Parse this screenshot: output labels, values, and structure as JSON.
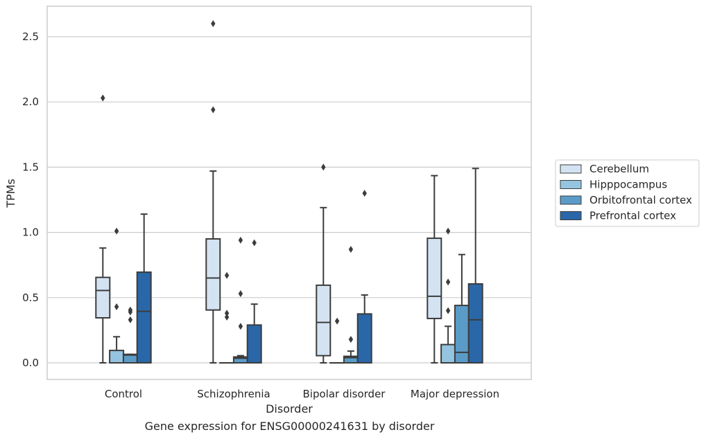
{
  "caption": "Gene expression for ENSG00000241631 by disorder",
  "chart_data": {
    "type": "box",
    "title": "",
    "xlabel": "Disorder",
    "ylabel": "TPMs",
    "ylim": [
      -0.12,
      2.72
    ],
    "yticks": [
      0.0,
      0.5,
      1.0,
      1.5,
      2.0,
      2.5
    ],
    "ytick_labels": [
      "0.0",
      "0.5",
      "1.0",
      "1.5",
      "2.0",
      "2.5"
    ],
    "grid": "horizontal",
    "legend_position": "right",
    "categories": [
      "Control",
      "Schizophrenia",
      "Bipolar disorder",
      "Major depression"
    ],
    "series": [
      {
        "name": "Cerebellum",
        "color": "#d4e3f2",
        "boxes": [
          {
            "whisker_low": 0.0,
            "q1": 0.345,
            "median": 0.555,
            "q3": 0.655,
            "whisker_high": 0.88,
            "outliers": [
              2.03
            ]
          },
          {
            "whisker_low": 0.0,
            "q1": 0.405,
            "median": 0.65,
            "q3": 0.95,
            "whisker_high": 1.47,
            "outliers": [
              1.94,
              2.6
            ]
          },
          {
            "whisker_low": 0.0,
            "q1": 0.055,
            "median": 0.31,
            "q3": 0.595,
            "whisker_high": 1.19,
            "outliers": [
              1.5
            ]
          },
          {
            "whisker_low": 0.0,
            "q1": 0.34,
            "median": 0.51,
            "q3": 0.955,
            "whisker_high": 1.435,
            "outliers": []
          }
        ]
      },
      {
        "name": "Hipppocampus",
        "color": "#94c4df",
        "boxes": [
          {
            "whisker_low": 0.0,
            "q1": 0.0,
            "median": 0.0,
            "q3": 0.095,
            "whisker_high": 0.2,
            "outliers": [
              0.43,
              1.01
            ]
          },
          {
            "whisker_low": 0.0,
            "q1": 0.0,
            "median": 0.0,
            "q3": 0.0,
            "whisker_high": 0.0,
            "outliers": [
              0.35,
              0.38,
              0.67
            ]
          },
          {
            "whisker_low": 0.0,
            "q1": 0.0,
            "median": 0.0,
            "q3": 0.0,
            "whisker_high": 0.0,
            "outliers": [
              0.32
            ]
          },
          {
            "whisker_low": 0.0,
            "q1": 0.0,
            "median": 0.0,
            "q3": 0.14,
            "whisker_high": 0.28,
            "outliers": [
              0.4,
              0.62,
              1.01
            ]
          }
        ]
      },
      {
        "name": "Orbitofrontal cortex",
        "color": "#5b9bc8",
        "boxes": [
          {
            "whisker_low": 0.0,
            "q1": 0.0,
            "median": 0.06,
            "q3": 0.065,
            "whisker_high": 0.065,
            "outliers": [
              0.33,
              0.39,
              0.405
            ]
          },
          {
            "whisker_low": 0.0,
            "q1": 0.0,
            "median": 0.035,
            "q3": 0.045,
            "whisker_high": 0.055,
            "outliers": [
              0.28,
              0.53,
              0.94
            ]
          },
          {
            "whisker_low": 0.0,
            "q1": 0.0,
            "median": 0.04,
            "q3": 0.05,
            "whisker_high": 0.09,
            "outliers": [
              0.18,
              0.87
            ]
          },
          {
            "whisker_low": 0.0,
            "q1": 0.0,
            "median": 0.08,
            "q3": 0.44,
            "whisker_high": 0.83,
            "outliers": []
          }
        ]
      },
      {
        "name": "Prefrontal cortex",
        "color": "#2a67a8",
        "boxes": [
          {
            "whisker_low": 0.0,
            "q1": 0.0,
            "median": 0.395,
            "q3": 0.695,
            "whisker_high": 1.14,
            "outliers": []
          },
          {
            "whisker_low": 0.0,
            "q1": 0.0,
            "median": 0.0,
            "q3": 0.29,
            "whisker_high": 0.45,
            "outliers": [
              0.92
            ]
          },
          {
            "whisker_low": 0.0,
            "q1": 0.0,
            "median": 0.0,
            "q3": 0.375,
            "whisker_high": 0.52,
            "outliers": [
              1.3
            ]
          },
          {
            "whisker_low": 0.0,
            "q1": 0.0,
            "median": 0.33,
            "q3": 0.605,
            "whisker_high": 1.49,
            "outliers": []
          }
        ]
      }
    ]
  }
}
